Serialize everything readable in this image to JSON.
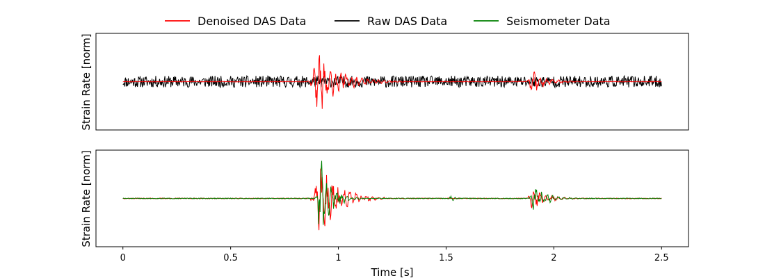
{
  "chart_data": {
    "type": "line",
    "legend": {
      "placement": "top-center",
      "entries": [
        {
          "label": "Denoised DAS Data",
          "color": "#ff0000"
        },
        {
          "label": "Raw DAS Data",
          "color": "#000000"
        },
        {
          "label": "Seismometer Data",
          "color": "#008000"
        }
      ]
    },
    "xlabel": "Time [s]",
    "xlim": [
      -0.125,
      2.625
    ],
    "xticks": [
      0,
      0.5,
      1,
      1.5,
      2,
      2.5
    ],
    "xtick_labels": [
      "0",
      "0.5",
      "1",
      "1.5",
      "2",
      "2.5"
    ],
    "grid": false,
    "panels": [
      {
        "ylabel": "Strain Rate [norm]",
        "ylim": [
          -1.0,
          1.0
        ],
        "yticks_visible": false,
        "series": [
          {
            "name": "Raw DAS Data",
            "color": "#000000",
            "generator": {
              "kind": "noise",
              "base_amp": 0.12,
              "bursts": [],
              "seed": 11
            }
          },
          {
            "name": "Denoised DAS Data",
            "color": "#ff0000",
            "generator": {
              "kind": "noise",
              "base_amp": 0.006,
              "seed": 23,
              "bursts": [
                {
                  "t": 0.905,
                  "dur": 0.1,
                  "amp": 0.72,
                  "freq": 40
                },
                {
                  "t": 1.9,
                  "dur": 0.06,
                  "amp": 0.28,
                  "freq": 35
                }
              ]
            }
          }
        ]
      },
      {
        "ylabel": "Strain Rate [norm]",
        "ylim": [
          -1.0,
          1.0
        ],
        "yticks_visible": false,
        "series": [
          {
            "name": "Denoised DAS Data",
            "color": "#ff0000",
            "generator": {
              "kind": "noise",
              "base_amp": 0.008,
              "seed": 37,
              "bursts": [
                {
                  "t": 0.88,
                  "dur": 0.04,
                  "amp": 0.08,
                  "freq": 30
                },
                {
                  "t": 0.915,
                  "dur": 0.08,
                  "amp": 0.85,
                  "freq": 38
                },
                {
                  "t": 0.98,
                  "dur": 0.08,
                  "amp": 0.18,
                  "freq": 30
                },
                {
                  "t": 1.9,
                  "dur": 0.06,
                  "amp": 0.3,
                  "freq": 35
                }
              ]
            }
          },
          {
            "name": "Seismometer Data",
            "color": "#008000",
            "generator": {
              "kind": "noise",
              "base_amp": 0.008,
              "seed": 51,
              "bursts": [
                {
                  "t": 0.915,
                  "dur": 0.05,
                  "amp": 0.95,
                  "freq": 42
                },
                {
                  "t": 1.0,
                  "dur": 0.05,
                  "amp": 0.07,
                  "freq": 40
                },
                {
                  "t": 1.515,
                  "dur": 0.02,
                  "amp": 0.1,
                  "freq": 45
                },
                {
                  "t": 1.91,
                  "dur": 0.06,
                  "amp": 0.28,
                  "freq": 38
                }
              ]
            }
          }
        ]
      }
    ]
  }
}
